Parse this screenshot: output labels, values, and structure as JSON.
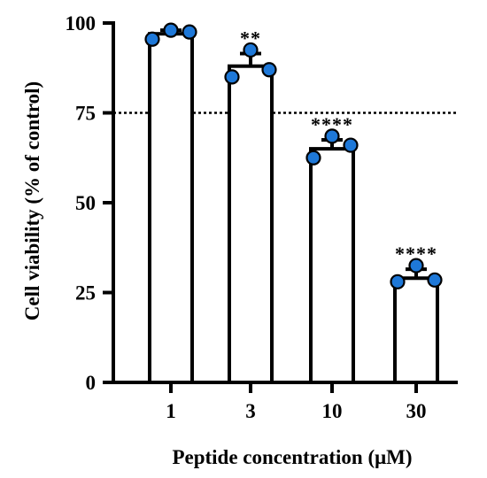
{
  "chart_data": {
    "type": "bar",
    "title": "",
    "xlabel": "Peptide concentration (μM)",
    "ylabel": "Cell viability (% of control)",
    "categories": [
      "1",
      "3",
      "10",
      "30"
    ],
    "values": [
      97,
      88,
      65,
      29
    ],
    "error": [
      1,
      3.5,
      2.5,
      2.5
    ],
    "significance": [
      "",
      "**",
      "****",
      "****"
    ],
    "points": [
      [
        95.5,
        98,
        97.5
      ],
      [
        85,
        92.5,
        87
      ],
      [
        62.5,
        68.5,
        66
      ],
      [
        28,
        32.5,
        28.5
      ]
    ],
    "ylim": [
      0,
      100
    ],
    "yticks": [
      0,
      25,
      50,
      75,
      100
    ],
    "reference_line": 75,
    "grid": false,
    "colors": {
      "bar_fill": "#ffffff",
      "bar_stroke": "#000000",
      "point_fill": "#1e78d8",
      "point_stroke": "#000000"
    }
  }
}
